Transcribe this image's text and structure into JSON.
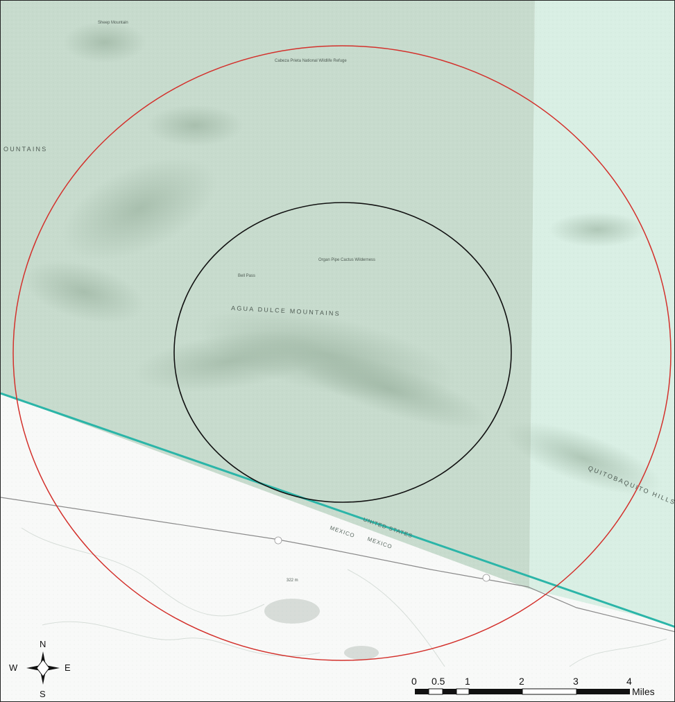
{
  "map": {
    "place_labels": {
      "agua_dulce_mountains": "AGUA DULCE MOUNTAINS",
      "mountains_left": "OUNTAINS",
      "united_states": "UNITED STATES",
      "mexico": "MEXICO",
      "mexico_2": "MEXICO",
      "quitobaquito_hills": "QUITOBAQUITO HILLS",
      "cabeza_prieta_refuge": "Cabeza Prieta National Wildlife Refuge",
      "cabeza_prieta_wilderness": "Organ Pipe Cactus Wilderness",
      "bell_pass": "Bell Pass",
      "sheep_mountain": "Sheep Mountain",
      "elevation_label": "322 m"
    },
    "colors": {
      "refuge_fill": "#c7dbcd",
      "park_fill": "#d9efe4",
      "outer_circle": "#d3302b",
      "inner_circle": "#111111",
      "border_line": "#2bb5a8",
      "road": "#8a8a8a"
    }
  },
  "compass": {
    "north": "N",
    "south": "S",
    "east": "E",
    "west": "W"
  },
  "scale_bar": {
    "ticks": [
      "0",
      "0.5",
      "1",
      "2",
      "3",
      "4"
    ],
    "unit": "Miles"
  }
}
